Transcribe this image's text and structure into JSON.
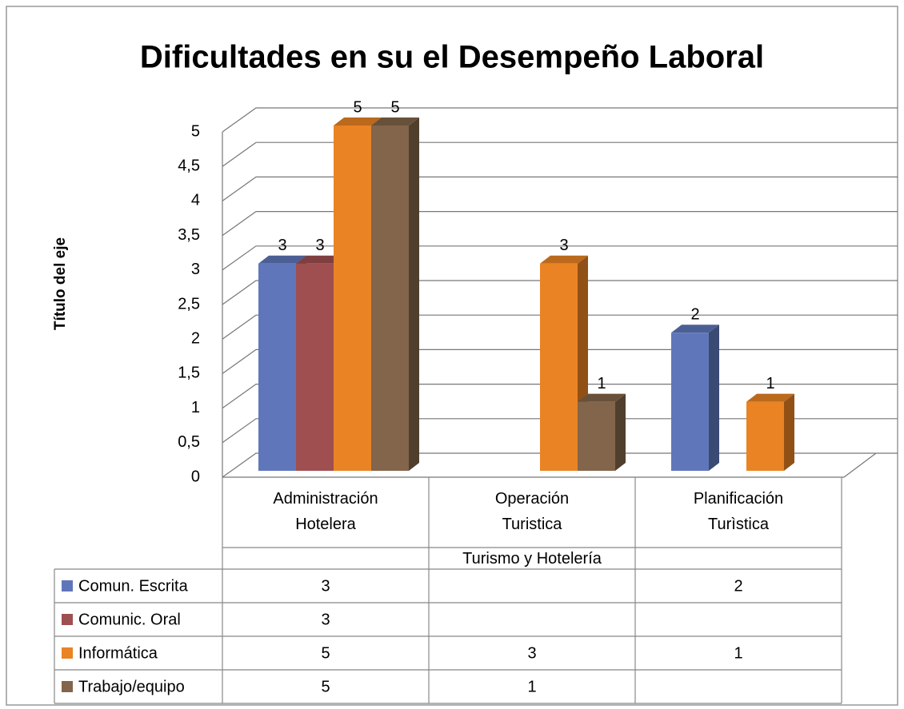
{
  "chart_data": {
    "type": "bar3d",
    "title": "Dificultades en su el Desempeño Laboral",
    "y_label": "Título del eje",
    "x_group_label": "Turismo y Hotelería",
    "categories": [
      "Administración Hotelera",
      "Operación Turistica",
      "Planificación Turìstica"
    ],
    "series": [
      {
        "name": "Comun. Escrita",
        "color": "#5f77ba",
        "values": [
          3,
          null,
          2
        ]
      },
      {
        "name": "Comunic. Oral",
        "color": "#9f4f50",
        "values": [
          3,
          null,
          null
        ]
      },
      {
        "name": "Informática",
        "color": "#ea8324",
        "values": [
          5,
          3,
          1
        ]
      },
      {
        "name": "Trabajo/equipo",
        "color": "#82654a",
        "values": [
          5,
          1,
          null
        ]
      }
    ],
    "ylim": [
      0,
      5
    ],
    "yticks": [
      0,
      {
        "value": 0.5,
        "label": "0,5"
      },
      1,
      {
        "value": 1.5,
        "label": "1,5"
      },
      2,
      {
        "value": 2.5,
        "label": "2,5"
      },
      3,
      {
        "value": 3.5,
        "label": "3,5"
      },
      4,
      {
        "value": 4.5,
        "label": "4,5"
      },
      5
    ],
    "grid": true,
    "data_labels": true,
    "data_table": true
  }
}
